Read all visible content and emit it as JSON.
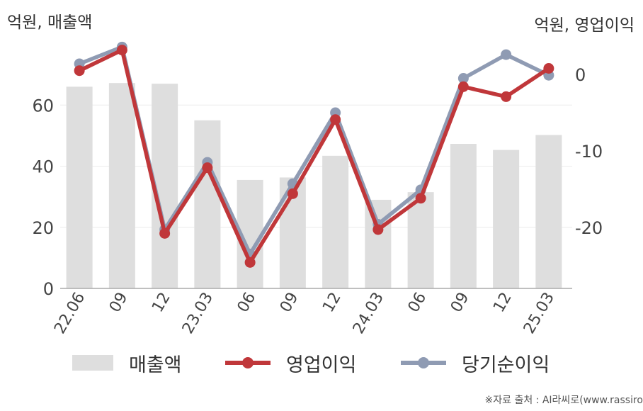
{
  "chart_data": {
    "type": "bar+line",
    "categories": [
      "22.06",
      "09",
      "12",
      "23.03",
      "06",
      "09",
      "12",
      "24.03",
      "06",
      "09",
      "12",
      "25.03"
    ],
    "left_axis": {
      "label": "억원, 매출액",
      "ticks": [
        0,
        20,
        40,
        60
      ],
      "ylim": [
        0,
        80
      ]
    },
    "right_axis": {
      "label": "억원, 영업이익",
      "ticks": [
        0,
        -10,
        -20
      ],
      "ylim": [
        -28,
        4
      ]
    },
    "series": [
      {
        "name": "매출액",
        "type": "bar",
        "axis": "left",
        "color": "#dedede",
        "values": [
          66,
          67.2,
          67,
          55,
          35.5,
          36.3,
          43.4,
          29,
          31.5,
          47.3,
          45.3,
          50.2
        ]
      },
      {
        "name": "영업이익",
        "type": "line",
        "axis": "right",
        "color": "#c0373a",
        "values": [
          0.5,
          3.2,
          -20.8,
          -12.2,
          -24.6,
          -15.6,
          -5.9,
          -20.3,
          -16.2,
          -1.6,
          -2.9,
          0.8
        ]
      },
      {
        "name": "당기순이익",
        "type": "line",
        "axis": "right",
        "color": "#8f9bb3",
        "values": [
          1.4,
          3.6,
          -20.3,
          -11.5,
          -23.5,
          -14.3,
          -5,
          -19.6,
          -15.1,
          -0.5,
          2.6,
          -0.1
        ]
      }
    ],
    "grid": true,
    "legend_position": "bottom"
  },
  "source": "※자료 출처 : AI라씨로(www.rassiro"
}
